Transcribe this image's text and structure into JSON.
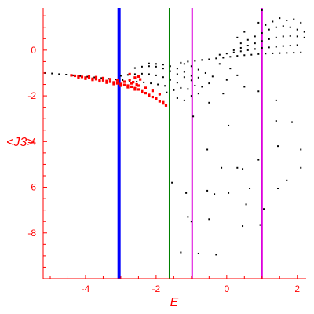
{
  "chart_data": {
    "type": "scatter",
    "title": "",
    "xlabel": "E",
    "ylabel": "<J3>",
    "xlim": [
      -5.2,
      2.25
    ],
    "ylim": [
      -10.0,
      1.85
    ],
    "x_ticks": [
      -4,
      -2,
      0,
      2
    ],
    "y_ticks": [
      0,
      -2,
      -4,
      -6,
      -8
    ],
    "x_tick_labels": [
      "-4",
      "-2",
      "0",
      "2"
    ],
    "y_tick_labels": [
      "0",
      "-2",
      "-4",
      "-6",
      "-8"
    ],
    "frame": "left-bottom",
    "grid": false,
    "legend": "none",
    "colors": {
      "axes": "#ff0000",
      "black_points": "#000000",
      "red_points": "#ff0000",
      "line_blue": "#0000ff",
      "line_green": "#008000",
      "line_magenta": "#dd00dd"
    },
    "vertical_lines": [
      {
        "x": -3.05,
        "color": "#0000ff",
        "width": "thick"
      },
      {
        "x": -1.62,
        "color": "#008000",
        "width": "thin"
      },
      {
        "x": -0.98,
        "color": "#dd00dd",
        "width": "thin"
      },
      {
        "x": 1.0,
        "color": "#dd00dd",
        "width": "thin"
      }
    ],
    "series": [
      {
        "color": "#000000",
        "points": [
          [
            -5.15,
            -1.0
          ],
          [
            -4.95,
            -1.02
          ],
          [
            -4.75,
            -1.05
          ],
          [
            -4.55,
            -1.07
          ],
          [
            -4.35,
            -1.1
          ],
          [
            -4.15,
            -1.13
          ],
          [
            -3.95,
            -1.16
          ],
          [
            -3.75,
            -1.19
          ],
          [
            -3.55,
            -1.22
          ],
          [
            -3.35,
            -1.25
          ],
          [
            -3.15,
            -1.28
          ],
          [
            -2.95,
            -1.31
          ],
          [
            -2.75,
            -1.35
          ],
          [
            -2.55,
            -1.38
          ],
          [
            -2.35,
            -1.41
          ],
          [
            -2.15,
            -1.45
          ],
          [
            -1.95,
            -1.5
          ],
          [
            -1.75,
            -1.56
          ],
          [
            -3.0,
            -1.12
          ],
          [
            -2.8,
            -1.08
          ],
          [
            -2.6,
            -1.05
          ],
          [
            -2.4,
            -1.03
          ],
          [
            -2.2,
            -1.05
          ],
          [
            -2.0,
            -1.1
          ],
          [
            -1.8,
            -1.18
          ],
          [
            -1.6,
            -1.3
          ],
          [
            -1.4,
            -1.42
          ],
          [
            -2.6,
            -0.78
          ],
          [
            -2.4,
            -0.72
          ],
          [
            -2.2,
            -0.7
          ],
          [
            -2.0,
            -0.72
          ],
          [
            -1.8,
            -0.8
          ],
          [
            -1.6,
            -0.92
          ],
          [
            -1.4,
            -1.05
          ],
          [
            -1.2,
            -1.18
          ],
          [
            -1.0,
            -1.32
          ],
          [
            -2.2,
            -0.58
          ],
          [
            -2.0,
            -0.6
          ],
          [
            -1.8,
            -0.63
          ],
          [
            -1.6,
            -0.7
          ],
          [
            -1.4,
            -0.8
          ],
          [
            -1.2,
            -0.95
          ],
          [
            -1.0,
            -1.12
          ],
          [
            -0.8,
            -1.2
          ],
          [
            -1.2,
            -0.6
          ],
          [
            -1.0,
            -0.7
          ],
          [
            -0.8,
            -0.85
          ],
          [
            -0.6,
            -1.0
          ],
          [
            -0.4,
            -1.15
          ],
          [
            -1.9,
            -1.95
          ],
          [
            -1.7,
            -1.85
          ],
          [
            -1.5,
            -1.75
          ],
          [
            -1.3,
            -1.65
          ],
          [
            -1.1,
            -1.7
          ],
          [
            -0.9,
            -1.55
          ],
          [
            -0.7,
            -1.6
          ],
          [
            -0.5,
            -1.45
          ],
          [
            -1.4,
            -2.1
          ],
          [
            -1.2,
            -2.2
          ],
          [
            -1.0,
            -2.0
          ],
          [
            -0.8,
            -1.9
          ],
          [
            -1.3,
            -0.55
          ],
          [
            -1.1,
            -0.5
          ],
          [
            -0.9,
            -0.47
          ],
          [
            -0.7,
            -0.43
          ],
          [
            -0.5,
            -0.4
          ],
          [
            -0.3,
            -0.36
          ],
          [
            -0.1,
            -0.33
          ],
          [
            0.1,
            -0.29
          ],
          [
            0.3,
            -0.25
          ],
          [
            0.5,
            -0.22
          ],
          [
            0.7,
            -0.2
          ],
          [
            0.9,
            -0.17
          ],
          [
            1.1,
            -0.15
          ],
          [
            1.3,
            -0.14
          ],
          [
            1.5,
            -0.13
          ],
          [
            1.7,
            -0.12
          ],
          [
            1.9,
            -0.11
          ],
          [
            2.1,
            -0.1
          ],
          [
            -0.2,
            -0.2
          ],
          [
            0.0,
            -0.15
          ],
          [
            0.2,
            -0.1
          ],
          [
            0.4,
            -0.05
          ],
          [
            0.6,
            0.0
          ],
          [
            0.8,
            0.05
          ],
          [
            1.0,
            0.1
          ],
          [
            1.2,
            0.12
          ],
          [
            1.4,
            0.15
          ],
          [
            1.6,
            0.18
          ],
          [
            1.8,
            0.2
          ],
          [
            2.0,
            0.22
          ],
          [
            0.2,
            0.0
          ],
          [
            0.4,
            0.1
          ],
          [
            0.6,
            0.2
          ],
          [
            0.8,
            0.3
          ],
          [
            1.0,
            0.4
          ],
          [
            1.2,
            0.48
          ],
          [
            1.4,
            0.55
          ],
          [
            1.6,
            0.6
          ],
          [
            1.8,
            0.62
          ],
          [
            2.0,
            0.6
          ],
          [
            2.2,
            0.55
          ],
          [
            0.4,
            0.3
          ],
          [
            0.6,
            0.45
          ],
          [
            0.8,
            0.6
          ],
          [
            1.0,
            0.75
          ],
          [
            1.2,
            0.9
          ],
          [
            1.4,
            1.0
          ],
          [
            1.6,
            1.05
          ],
          [
            1.8,
            1.0
          ],
          [
            2.0,
            0.9
          ],
          [
            2.2,
            0.8
          ],
          [
            0.9,
            1.2
          ],
          [
            1.1,
            1.1
          ],
          [
            1.3,
            1.25
          ],
          [
            1.5,
            1.4
          ],
          [
            1.7,
            1.3
          ],
          [
            1.9,
            1.35
          ],
          [
            2.1,
            1.2
          ],
          [
            1.0,
            1.75
          ],
          [
            0.5,
            0.8
          ],
          [
            0.3,
            0.55
          ],
          [
            -0.2,
            -0.6
          ],
          [
            0.1,
            -0.8
          ],
          [
            0.3,
            -1.1
          ],
          [
            0.0,
            -1.3
          ],
          [
            0.5,
            -1.6
          ],
          [
            -0.1,
            -1.9
          ],
          [
            0.9,
            -1.8
          ],
          [
            -0.5,
            -2.3
          ],
          [
            1.4,
            -2.2
          ],
          [
            1.4,
            -3.1
          ],
          [
            1.85,
            -3.15
          ],
          [
            0.05,
            -3.3
          ],
          [
            -0.95,
            -2.9
          ],
          [
            1.45,
            -4.2
          ],
          [
            -0.55,
            -4.35
          ],
          [
            2.1,
            -4.35
          ],
          [
            0.9,
            -4.8
          ],
          [
            0.3,
            -5.15
          ],
          [
            -0.15,
            -5.15
          ],
          [
            0.45,
            -5.2
          ],
          [
            2.1,
            -5.15
          ],
          [
            -1.55,
            -5.8
          ],
          [
            1.7,
            -5.7
          ],
          [
            0.65,
            -6.05
          ],
          [
            -0.55,
            -6.15
          ],
          [
            0.05,
            -6.25
          ],
          [
            -1.15,
            -6.25
          ],
          [
            1.45,
            -6.05
          ],
          [
            -0.35,
            -6.3
          ],
          [
            0.55,
            -6.75
          ],
          [
            1.05,
            -6.95
          ],
          [
            -1.1,
            -7.3
          ],
          [
            -0.5,
            -7.4
          ],
          [
            -1.0,
            -7.5
          ],
          [
            0.45,
            -7.7
          ],
          [
            0.95,
            -7.65
          ],
          [
            -1.3,
            -8.85
          ],
          [
            -0.8,
            -8.9
          ],
          [
            -0.3,
            -8.95
          ]
        ]
      },
      {
        "color": "#ff0000",
        "points": [
          [
            -4.4,
            -1.1
          ],
          [
            -4.3,
            -1.12
          ],
          [
            -4.2,
            -1.15
          ],
          [
            -4.1,
            -1.17
          ],
          [
            -4.0,
            -1.2
          ],
          [
            -3.9,
            -1.22
          ],
          [
            -3.8,
            -1.25
          ],
          [
            -3.7,
            -1.27
          ],
          [
            -3.6,
            -1.3
          ],
          [
            -3.5,
            -1.32
          ],
          [
            -3.4,
            -1.35
          ],
          [
            -3.3,
            -1.38
          ],
          [
            -3.2,
            -1.41
          ],
          [
            -3.1,
            -1.45
          ],
          [
            -3.0,
            -1.48
          ],
          [
            -2.9,
            -1.52
          ],
          [
            -2.8,
            -1.55
          ],
          [
            -2.7,
            -1.6
          ],
          [
            -2.6,
            -1.66
          ],
          [
            -2.5,
            -1.72
          ],
          [
            -2.4,
            -1.8
          ],
          [
            -2.3,
            -1.88
          ],
          [
            -2.2,
            -1.96
          ],
          [
            -2.1,
            -2.05
          ],
          [
            -2.0,
            -2.14
          ],
          [
            -1.9,
            -2.24
          ],
          [
            -1.8,
            -2.33
          ],
          [
            -1.72,
            -2.42
          ],
          [
            -4.2,
            -1.2
          ],
          [
            -4.0,
            -1.25
          ],
          [
            -3.8,
            -1.3
          ],
          [
            -3.6,
            -1.36
          ],
          [
            -3.4,
            -1.42
          ],
          [
            -3.2,
            -1.48
          ],
          [
            -3.0,
            -1.55
          ],
          [
            -2.8,
            -1.62
          ],
          [
            -2.6,
            -1.72
          ],
          [
            -2.4,
            -1.84
          ],
          [
            -2.2,
            -1.98
          ],
          [
            -2.0,
            -2.12
          ],
          [
            -1.8,
            -2.28
          ],
          [
            -3.9,
            -1.15
          ],
          [
            -3.7,
            -1.18
          ],
          [
            -3.5,
            -1.22
          ],
          [
            -3.3,
            -1.27
          ],
          [
            -3.1,
            -1.32
          ],
          [
            -2.9,
            -1.38
          ],
          [
            -2.7,
            -1.45
          ],
          [
            -2.5,
            -1.55
          ],
          [
            -2.3,
            -1.65
          ],
          [
            -2.1,
            -1.78
          ],
          [
            -1.9,
            -1.92
          ],
          [
            -2.75,
            -1.3
          ],
          [
            -2.65,
            -1.4
          ],
          [
            -2.55,
            -1.5
          ],
          [
            -2.6,
            -1.2
          ],
          [
            -2.75,
            -1.05
          ],
          [
            -2.5,
            -1.15
          ],
          [
            -2.45,
            -1.28
          ]
        ]
      }
    ]
  }
}
